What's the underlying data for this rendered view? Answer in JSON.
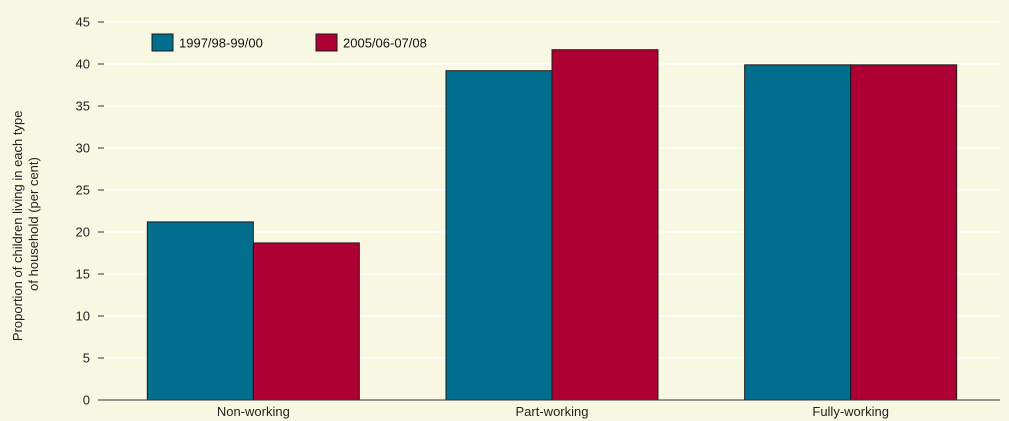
{
  "chart_data": {
    "type": "bar",
    "categories": [
      "Non-working",
      "Part-working",
      "Fully-working"
    ],
    "series": [
      {
        "name": "1997/98-99/00",
        "values": [
          21.2,
          39.2,
          39.9
        ],
        "color": "#006e8c"
      },
      {
        "name": "2005/06-07/08",
        "values": [
          18.7,
          41.7,
          39.9
        ],
        "color": "#ae0034"
      }
    ],
    "title": "",
    "xlabel": "",
    "ylabel_lines": [
      "Proportion of children living in each type",
      "of household (per cent)"
    ],
    "ylim": [
      0,
      45
    ],
    "yticks": [
      0,
      5,
      10,
      15,
      20,
      25,
      30,
      35,
      40,
      45
    ],
    "grid": true,
    "legend_position": "top-left"
  },
  "colors": {
    "background": "#f8f8e2",
    "grid": "#ffffff",
    "bar_edge": "#1a1a1a"
  }
}
